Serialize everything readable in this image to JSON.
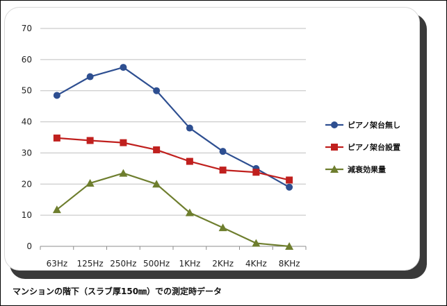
{
  "chart_data": {
    "type": "line",
    "categories": [
      "63Hz",
      "125Hz",
      "250Hz",
      "500Hz",
      "1KHz",
      "2KHz",
      "4KHz",
      "8KHz"
    ],
    "series": [
      {
        "name": "ピアノ架台無し",
        "values": [
          48.5,
          54.5,
          57.5,
          50,
          38,
          30.5,
          25,
          19
        ],
        "color": "#2E4F91",
        "marker": "circle"
      },
      {
        "name": "ピアノ架台設置",
        "values": [
          34.8,
          34,
          33.3,
          31,
          27.3,
          24.5,
          23.8,
          21.3
        ],
        "color": "#C0201E",
        "marker": "square"
      },
      {
        "name": "減衰効果量",
        "values": [
          11.8,
          20.3,
          23.5,
          20,
          10.8,
          6,
          1,
          0
        ],
        "color": "#6E7E2E",
        "marker": "triangle"
      }
    ],
    "ylim": [
      0,
      70
    ],
    "yticks": [
      0,
      10,
      20,
      30,
      40,
      50,
      60,
      70
    ],
    "grid": true,
    "legend_position": "right",
    "title": "",
    "xlabel": "",
    "ylabel": ""
  },
  "caption": "マンションの階下（スラブ厚150㎜）での測定時データ"
}
